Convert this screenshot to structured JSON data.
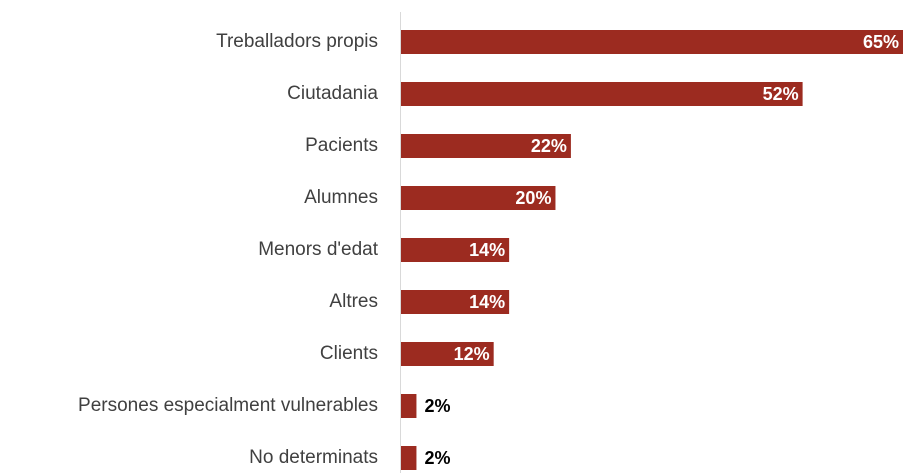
{
  "chart_data": {
    "type": "barh",
    "categories": [
      "Treballadors propis",
      "Ciutadania",
      "Pacients",
      "Alumnes",
      "Menors d'edat",
      "Altres",
      "Clients",
      "Persones especialment vulnerables",
      "No determinats"
    ],
    "values": [
      65,
      52,
      22,
      20,
      14,
      14,
      12,
      2,
      2
    ],
    "value_labels": [
      "65%",
      "52%",
      "22%",
      "20%",
      "14%",
      "14%",
      "12%",
      "2%",
      "2%"
    ],
    "color": "#9c2b20",
    "xlim": [
      0,
      65
    ]
  }
}
